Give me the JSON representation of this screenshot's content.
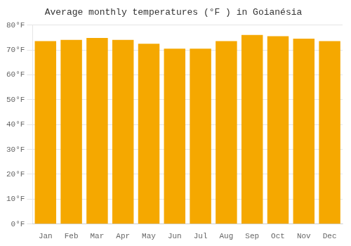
{
  "chart_data": {
    "type": "bar",
    "title": "Average monthly temperatures (°F ) in Goianésia",
    "categories": [
      "Jan",
      "Feb",
      "Mar",
      "Apr",
      "May",
      "Jun",
      "Jul",
      "Aug",
      "Sep",
      "Oct",
      "Nov",
      "Dec"
    ],
    "values": [
      73.5,
      74.0,
      74.8,
      74.0,
      72.5,
      70.5,
      70.5,
      73.5,
      76.0,
      75.5,
      74.5,
      73.5
    ],
    "color": "#F5A800",
    "ylim": [
      0,
      80
    ],
    "yticks": [
      {
        "value": 0,
        "label": "0°F"
      },
      {
        "value": 10,
        "label": "10°F"
      },
      {
        "value": 20,
        "label": "20°F"
      },
      {
        "value": 30,
        "label": "30°F"
      },
      {
        "value": 40,
        "label": "40°F"
      },
      {
        "value": 50,
        "label": "50°F"
      },
      {
        "value": 60,
        "label": "60°F"
      },
      {
        "value": 70,
        "label": "70°F"
      },
      {
        "value": 80,
        "label": "80°F"
      }
    ],
    "grid": true
  }
}
